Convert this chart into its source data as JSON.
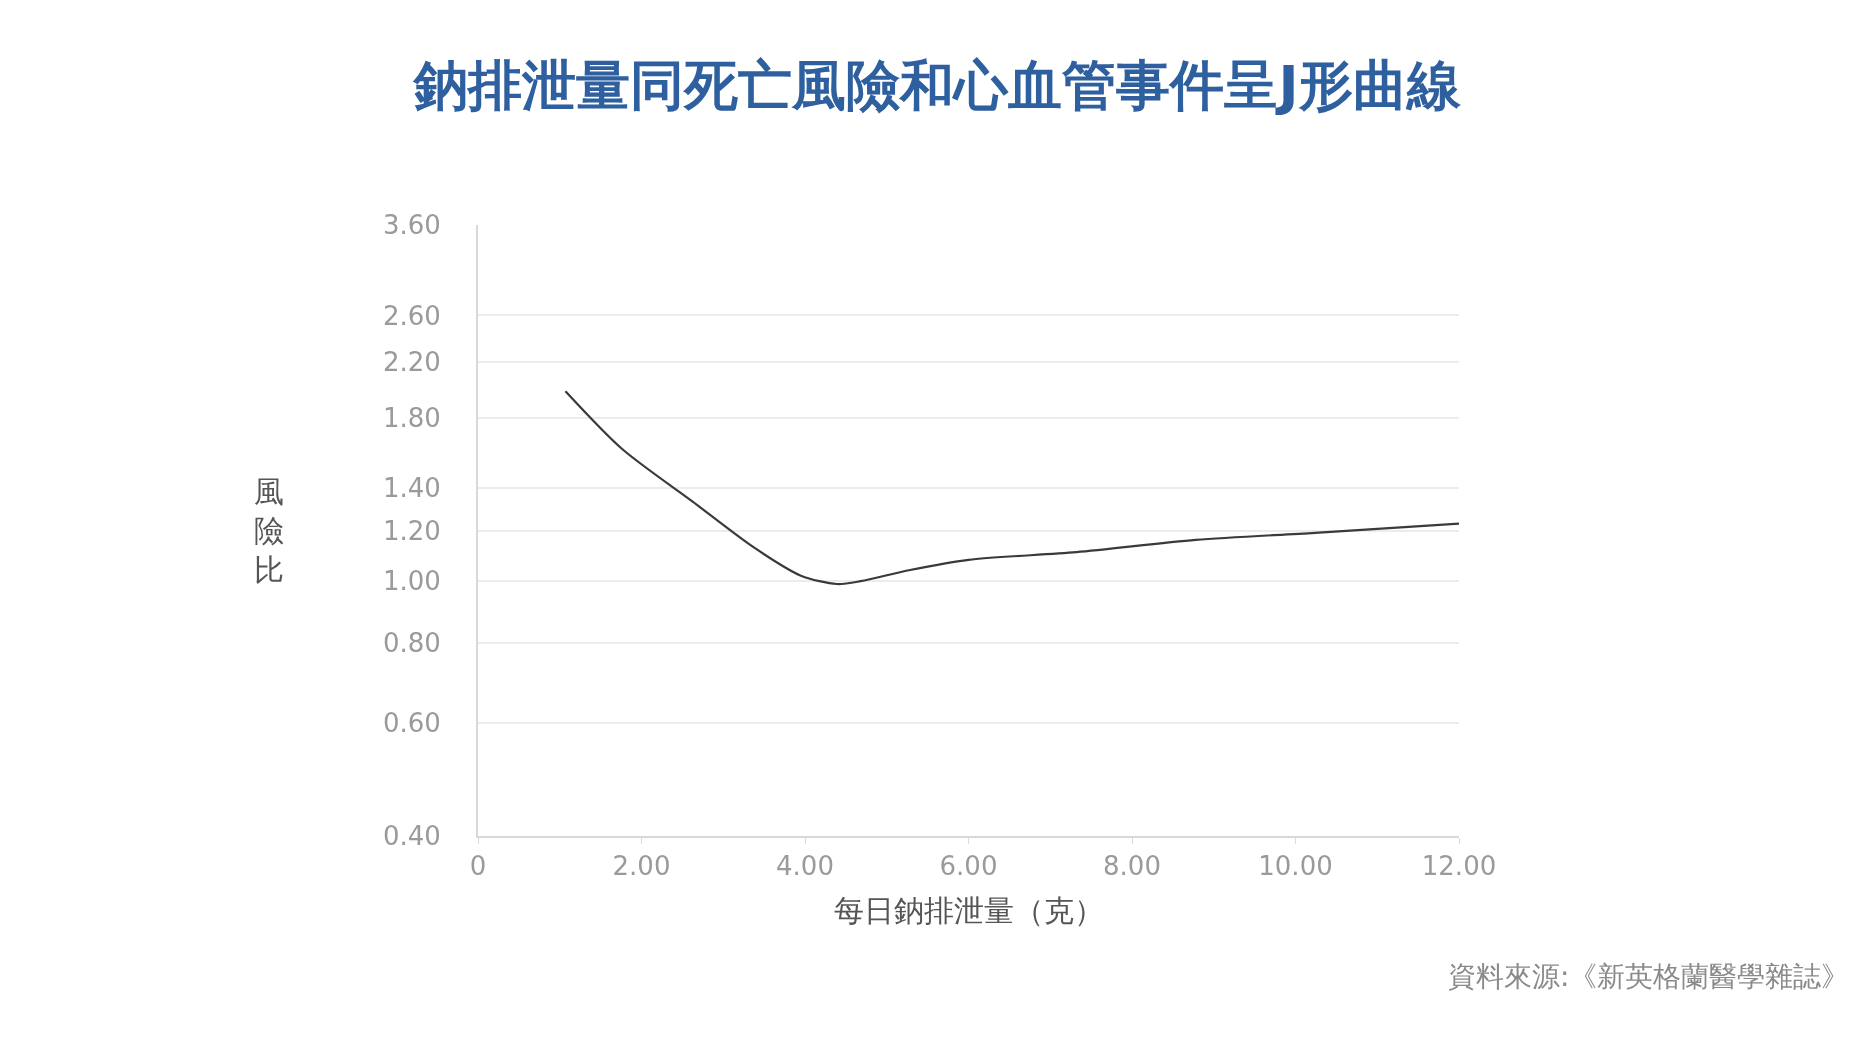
{
  "chart_data": {
    "type": "line",
    "title": "鈉排泄量同死亡風險和心血管事件呈J形曲線",
    "xlabel": "每日鈉排泄量（克）",
    "ylabel": "風險比",
    "annotations": [
      "資料來源:《新英格蘭醫學雜誌》"
    ],
    "x": [
      1.07,
      1.76,
      2.63,
      3.37,
      3.95,
      4.39,
      4.68,
      5.27,
      6.0,
      7.32,
      8.78,
      10.24,
      12.0
    ],
    "series": [
      {
        "color": "#3a3a3a",
        "values": [
          1.98,
          1.61,
          1.33,
          1.13,
          1.02,
          0.99,
          1.0,
          1.04,
          1.08,
          1.11,
          1.16,
          1.19,
          1.23
        ]
      }
    ],
    "log": "y",
    "xlim": [
      0,
      12
    ],
    "ylim": [
      0.4,
      3.6
    ],
    "xticks": [
      0,
      {
        "value": 2,
        "label": "2.00"
      },
      {
        "value": 4,
        "label": "4.00"
      },
      {
        "value": 6,
        "label": "6.00"
      },
      {
        "value": 8,
        "label": "8.00"
      },
      {
        "value": 10,
        "label": "10.00"
      },
      {
        "value": 12,
        "label": "12.00"
      }
    ],
    "yticks": [
      {
        "value": 0.4,
        "label": "0.40"
      },
      {
        "value": 0.6,
        "label": "0.60"
      },
      {
        "value": 0.8,
        "label": "0.80"
      },
      {
        "value": 1.0,
        "label": "1.00"
      },
      {
        "value": 1.2,
        "label": "1.20"
      },
      {
        "value": 1.4,
        "label": "1.40"
      },
      {
        "value": 1.8,
        "label": "1.80"
      },
      {
        "value": 2.2,
        "label": "2.20"
      },
      {
        "value": 2.6,
        "label": "2.60"
      },
      {
        "value": 3.6,
        "label": "3.60"
      }
    ],
    "grid": "y",
    "marker": "none",
    "line_style": "solid"
  }
}
